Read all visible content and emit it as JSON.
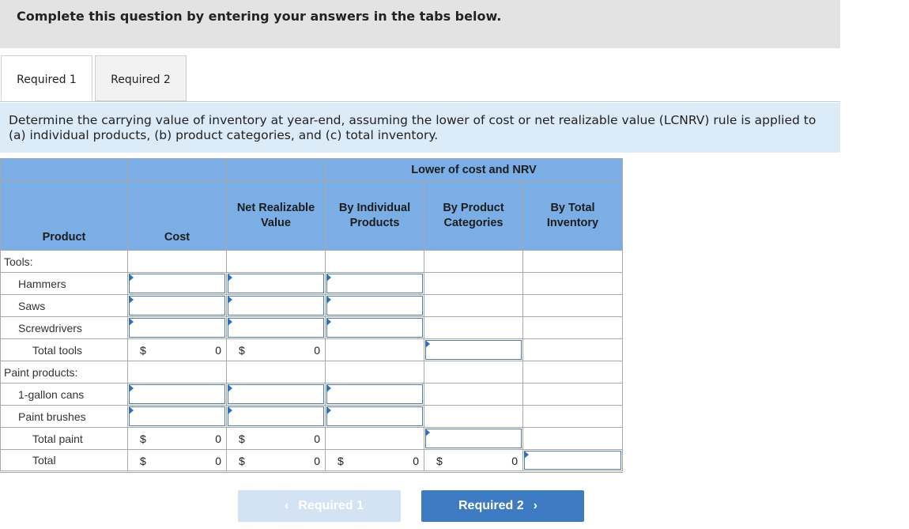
{
  "instructions": "Complete this question by entering your answers in the tabs below.",
  "tabs": [
    {
      "label": "Required 1",
      "active": true
    },
    {
      "label": "Required 2",
      "active": false
    }
  ],
  "question": "Determine the carrying value of inventory at year-end, assuming the lower of cost or net realizable value (LCNRV) rule is applied to (a) individual products, (b) product categories, and (c) total inventory.",
  "table": {
    "group_header": "Lower of cost and NRV",
    "columns": {
      "product": "Product",
      "cost": "Cost",
      "nrv": "Net Realizable Value",
      "by_individual": "By Individual Products",
      "by_category": "By Product Categories",
      "by_total": "By Total Inventory"
    },
    "sections": {
      "tools": "Tools:",
      "paint": "Paint products:"
    },
    "rows": {
      "hammers": "Hammers",
      "saws": "Saws",
      "screwdrivers": "Screwdrivers",
      "total_tools": "Total tools",
      "gallon_cans": "1-gallon cans",
      "paint_brushes": "Paint brushes",
      "total_paint": "Total paint",
      "total": "Total"
    },
    "currency": "$",
    "totals": {
      "tools_cost": "0",
      "tools_nrv": "0",
      "paint_cost": "0",
      "paint_nrv": "0",
      "total_cost": "0",
      "total_nrv": "0",
      "total_individual": "0",
      "total_category": "0"
    }
  },
  "nav": {
    "prev_label": "Required 1",
    "next_label": "Required 2",
    "prev_icon": "chevron-left-icon",
    "next_icon": "chevron-right-icon"
  },
  "colors": {
    "header_bg": "#7aaee5",
    "question_bg": "#dcebf8",
    "next_button": "#3e7bc3",
    "prev_button_disabled": "#d3e3f3",
    "input_border": "#4a7cb8"
  }
}
